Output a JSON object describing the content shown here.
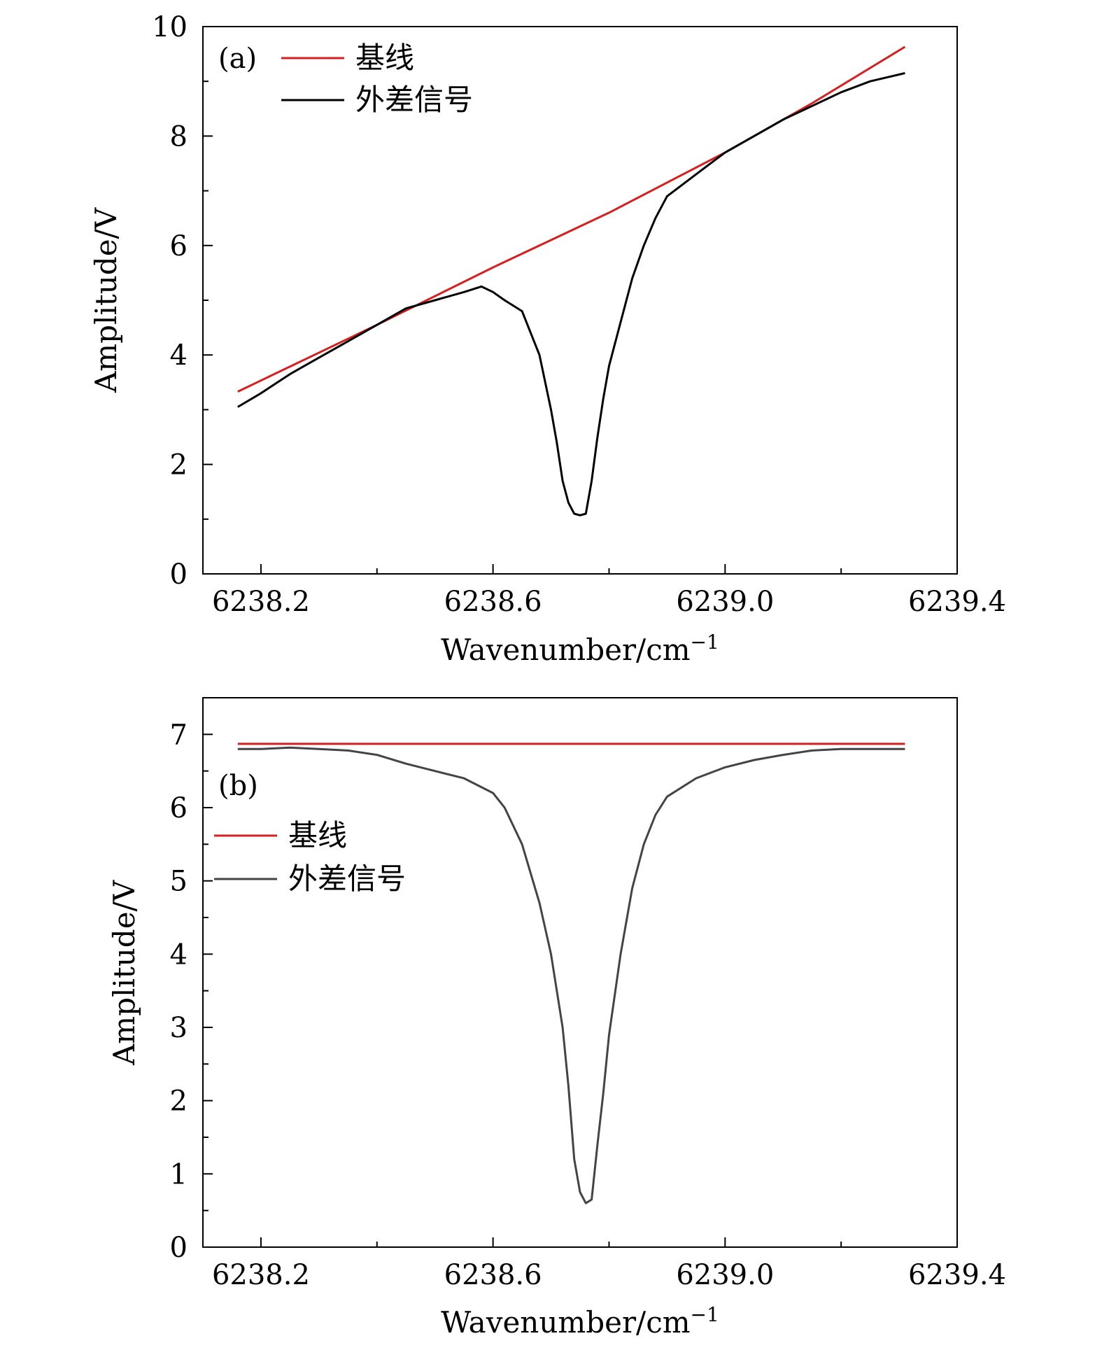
{
  "chart_data": [
    {
      "type": "line",
      "panel_label": "(a)",
      "xlabel": "Wavenumber/cm",
      "xlabel_sup": "−1",
      "ylabel": "Amplitude/V",
      "xlim": [
        6238.1,
        6239.4
      ],
      "ylim": [
        0,
        10
      ],
      "xticks": [
        6238.2,
        6238.6,
        6239.0,
        6239.4
      ],
      "xtick_labels": [
        "6238.2",
        "6238.6",
        "6239.0",
        "6239.4"
      ],
      "yticks": [
        0,
        2,
        4,
        6,
        8,
        10
      ],
      "ytick_labels": [
        "0",
        "2",
        "4",
        "6",
        "8",
        "10"
      ],
      "grid": false,
      "legend_position": "top-left",
      "series": [
        {
          "name": "基线",
          "color": "#d42020",
          "x": [
            6238.16,
            6238.4,
            6238.6,
            6238.8,
            6239.0,
            6239.15,
            6239.31
          ],
          "y": [
            3.33,
            4.55,
            5.6,
            6.6,
            7.7,
            8.6,
            9.63
          ]
        },
        {
          "name": "外差信号",
          "color": "#000000",
          "x": [
            6238.16,
            6238.2,
            6238.25,
            6238.3,
            6238.35,
            6238.4,
            6238.45,
            6238.5,
            6238.55,
            6238.58,
            6238.6,
            6238.62,
            6238.65,
            6238.68,
            6238.7,
            6238.71,
            6238.72,
            6238.73,
            6238.74,
            6238.75,
            6238.76,
            6238.77,
            6238.78,
            6238.79,
            6238.8,
            6238.82,
            6238.84,
            6238.86,
            6238.88,
            6238.9,
            6238.95,
            6239.0,
            6239.05,
            6239.1,
            6239.15,
            6239.2,
            6239.25,
            6239.31
          ],
          "y": [
            3.05,
            3.3,
            3.65,
            3.95,
            4.25,
            4.55,
            4.85,
            5.0,
            5.15,
            5.25,
            5.15,
            5.0,
            4.8,
            4.0,
            3.0,
            2.4,
            1.7,
            1.3,
            1.1,
            1.07,
            1.1,
            1.7,
            2.5,
            3.2,
            3.8,
            4.6,
            5.4,
            6.0,
            6.5,
            6.9,
            7.3,
            7.7,
            8.0,
            8.3,
            8.55,
            8.8,
            9.0,
            9.15
          ]
        }
      ]
    },
    {
      "type": "line",
      "panel_label": "(b)",
      "xlabel": "Wavenumber/cm",
      "xlabel_sup": "−1",
      "ylabel": "Amplitude/V",
      "xlim": [
        6238.1,
        6239.4
      ],
      "ylim": [
        0,
        7.5
      ],
      "xticks": [
        6238.2,
        6238.6,
        6239.0,
        6239.4
      ],
      "xtick_labels": [
        "6238.2",
        "6238.6",
        "6239.0",
        "6239.4"
      ],
      "yticks": [
        0,
        1,
        2,
        3,
        4,
        5,
        6,
        7
      ],
      "ytick_labels": [
        "0",
        "1",
        "2",
        "3",
        "4",
        "5",
        "6",
        "7"
      ],
      "grid": false,
      "legend_position": "upper-left",
      "series": [
        {
          "name": "基线",
          "color": "#d42020",
          "x": [
            6238.16,
            6239.31
          ],
          "y": [
            6.87,
            6.87
          ]
        },
        {
          "name": "外差信号",
          "color": "#444444",
          "x": [
            6238.16,
            6238.2,
            6238.25,
            6238.3,
            6238.35,
            6238.4,
            6238.45,
            6238.5,
            6238.55,
            6238.6,
            6238.62,
            6238.65,
            6238.68,
            6238.7,
            6238.72,
            6238.73,
            6238.74,
            6238.75,
            6238.76,
            6238.77,
            6238.78,
            6238.79,
            6238.8,
            6238.82,
            6238.84,
            6238.86,
            6238.88,
            6238.9,
            6238.95,
            6239.0,
            6239.05,
            6239.1,
            6239.15,
            6239.2,
            6239.25,
            6239.31
          ],
          "y": [
            6.8,
            6.8,
            6.82,
            6.8,
            6.78,
            6.72,
            6.6,
            6.5,
            6.4,
            6.2,
            6.0,
            5.5,
            4.7,
            4.0,
            3.0,
            2.2,
            1.2,
            0.75,
            0.6,
            0.65,
            1.4,
            2.1,
            2.9,
            4.0,
            4.9,
            5.5,
            5.9,
            6.15,
            6.4,
            6.55,
            6.65,
            6.72,
            6.78,
            6.8,
            6.8,
            6.8
          ]
        }
      ]
    }
  ]
}
